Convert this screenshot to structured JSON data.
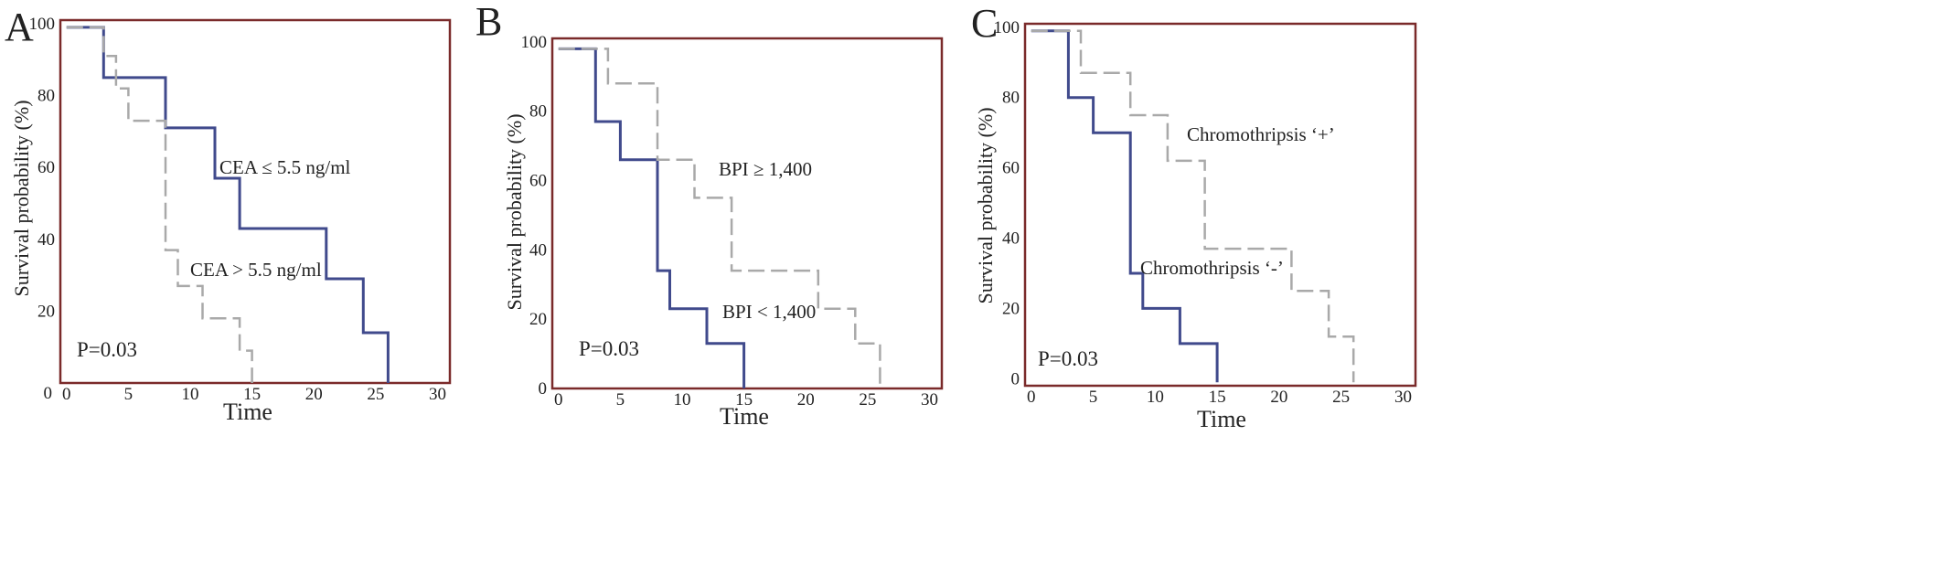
{
  "chart_data": [
    {
      "panel_label": "A",
      "type": "line",
      "xlabel": "Time",
      "ylabel": "Survival probability (%)",
      "x_ticks": [
        0,
        5,
        10,
        15,
        20,
        25,
        30
      ],
      "y_ticks": [
        20,
        40,
        60,
        80,
        100
      ],
      "x_range": [
        -0.5,
        31
      ],
      "y_range": [
        0,
        101
      ],
      "annotation": "P=0.03",
      "series": [
        {
          "name": "CEA ≤ 5.5 ng/ml",
          "style": "solid",
          "color": "#404a8c",
          "x": [
            0,
            3,
            3,
            8,
            8,
            12,
            12,
            14,
            14,
            21,
            21,
            24,
            24,
            26,
            26
          ],
          "y": [
            99,
            99,
            85,
            85,
            71,
            71,
            57,
            57,
            43,
            43,
            29,
            29,
            14,
            14,
            0
          ]
        },
        {
          "name": "CEA > 5.5 ng/ml",
          "style": "dashed",
          "color": "#a9a9a9",
          "x": [
            0,
            3,
            3,
            4,
            4,
            5,
            5,
            8,
            8,
            9,
            9,
            11,
            11,
            14,
            14,
            15,
            15
          ],
          "y": [
            99,
            99,
            91,
            91,
            82,
            82,
            73,
            73,
            37,
            37,
            27,
            27,
            18,
            18,
            9,
            9,
            0
          ]
        }
      ],
      "label_text": {
        "s1": "CEA ≤ 5.5 ng/ml",
        "s2": "CEA > 5.5 ng/ml"
      }
    },
    {
      "panel_label": "B",
      "type": "line",
      "xlabel": "Time",
      "ylabel": "Survival probability (%)",
      "x_ticks": [
        0,
        5,
        10,
        15,
        20,
        25,
        30
      ],
      "y_ticks": [
        0,
        20,
        40,
        60,
        80,
        100
      ],
      "x_range": [
        -0.5,
        31
      ],
      "y_range": [
        0,
        101
      ],
      "annotation": "P=0.03",
      "series": [
        {
          "name": "BPI < 1,400",
          "style": "solid",
          "color": "#404a8c",
          "x": [
            0,
            3,
            3,
            5,
            5,
            8,
            8,
            9,
            9,
            12,
            12,
            15,
            15
          ],
          "y": [
            98,
            98,
            77,
            77,
            66,
            66,
            34,
            34,
            23,
            23,
            13,
            13,
            0
          ]
        },
        {
          "name": "BPI ≥ 1,400",
          "style": "dashed",
          "color": "#a9a9a9",
          "x": [
            0,
            4,
            4,
            8,
            8,
            11,
            11,
            14,
            14,
            21,
            21,
            24,
            24,
            26,
            26
          ],
          "y": [
            98,
            98,
            88,
            88,
            66,
            66,
            55,
            55,
            34,
            34,
            23,
            23,
            13,
            13,
            0
          ]
        }
      ],
      "label_text": {
        "s1": "BPI ≥ 1,400",
        "s2": "BPI < 1,400"
      }
    },
    {
      "panel_label": "C",
      "type": "line",
      "xlabel": "Time",
      "ylabel": "Survival probability (%)",
      "x_ticks": [
        0,
        5,
        10,
        15,
        20,
        25,
        30
      ],
      "y_ticks": [
        0,
        20,
        40,
        60,
        80,
        100
      ],
      "x_range": [
        -0.5,
        31
      ],
      "y_range": [
        -2,
        101
      ],
      "annotation": "P=0.03",
      "series": [
        {
          "name": "Chromothripsis ‘-’",
          "style": "solid",
          "color": "#404a8c",
          "x": [
            0,
            3,
            3,
            5,
            5,
            8,
            8,
            9,
            9,
            12,
            12,
            15,
            15
          ],
          "y": [
            99,
            99,
            80,
            80,
            70,
            70,
            30,
            30,
            20,
            20,
            10,
            10,
            -1
          ]
        },
        {
          "name": "Chromothripsis ‘+’",
          "style": "dashed",
          "color": "#a9a9a9",
          "x": [
            0,
            4,
            4,
            8,
            8,
            11,
            11,
            14,
            14,
            21,
            21,
            24,
            24,
            26,
            26
          ],
          "y": [
            99,
            99,
            87,
            87,
            75,
            75,
            62,
            62,
            37,
            37,
            25,
            25,
            12,
            12,
            -1
          ]
        }
      ],
      "label_text": {
        "s1": "Chromothripsis ‘+’",
        "s2": "Chromothripsis ‘-’"
      }
    }
  ]
}
